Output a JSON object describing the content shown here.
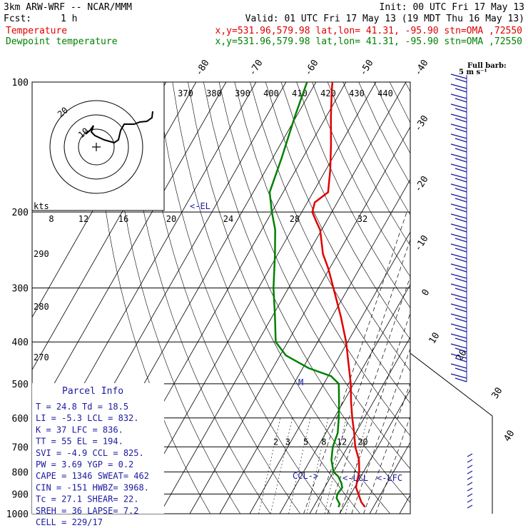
{
  "header": {
    "line1_left": "3km ARW-WRF -- NCAR/MMM",
    "line1_right": "Init: 00 UTC Fri 17 May 13",
    "fcst_label": "Fcst:",
    "fcst_value": "1 h",
    "valid": "Valid: 01 UTC Fri 17 May 13 (19 MDT Thu 16 May 13)",
    "temp_label": "Temperature",
    "temp_info": "x,y=531.96,579.98   lat,lon= 41.31, -95.90  stn=OMA ,72550",
    "dew_label": "Dewpoint temperature",
    "dew_info": "x,y=531.96,579.98   lat,lon= 41.31, -95.90  stn=OMA ,72550"
  },
  "colors": {
    "temperature": "#e00000",
    "dewpoint": "#008000",
    "parcel_box": "#1a1aa0",
    "wind_barbs": "#1a1aa0"
  },
  "labels": {
    "wind_note_1": "Full barb:",
    "wind_note_2": "5 m s⁻¹",
    "hodo_units": "kts",
    "el_marker": "<-EL",
    "ccl_marker": "CCL->",
    "lcl_marker": "<-LCL",
    "lfc_marker": "<-LFC",
    "m_marker": "M"
  },
  "parcel": {
    "title": "Parcel Info",
    "rows": [
      "T   =   24.8  Td =  18.5",
      "LI  =   -5.3  LCL =  832.",
      "K   =     37  LFC =  836.",
      "TT  =     55  EL  =  194.",
      "SVI =   -4.9  CCL =  825.",
      "PW  =   3.69  YGP =   0.2",
      "CAPE =  1346  SWEAT=  462",
      "CIN  =  -151  HWBZ= 3968.",
      "Tc  =   27.1  SHEAR=  22.",
      "SREH =    36  LAPSE=  7.2",
      "CELL = 229/17"
    ]
  },
  "chart_data": {
    "type": "line",
    "chart_kind": "skew-T log-p sounding",
    "y_axis": {
      "scale": "log",
      "range": [
        1000,
        100
      ],
      "ticks": [
        100,
        200,
        300,
        400,
        500,
        600,
        700,
        800,
        900,
        1000
      ]
    },
    "isotherm_labels": [
      -80,
      -70,
      -60,
      -50,
      -40,
      -30,
      -20,
      -10,
      0,
      10,
      20,
      30,
      40
    ],
    "theta_labels_top": [
      370,
      380,
      390,
      400,
      410,
      420,
      430,
      440
    ],
    "theta_labels_left": [
      290,
      280,
      270
    ],
    "hodograph_ring_labels": [
      8,
      12,
      16,
      20,
      24,
      28,
      32
    ],
    "mixing_ratio_labels": [
      2,
      3,
      5,
      8,
      12,
      20
    ],
    "series": [
      {
        "name": "Temperature",
        "points": [
          [
            965,
            27.2
          ],
          [
            940,
            25.0
          ],
          [
            900,
            22.5
          ],
          [
            870,
            20.5
          ],
          [
            840,
            19.6
          ],
          [
            800,
            18.6
          ],
          [
            750,
            16.2
          ],
          [
            700,
            12.5
          ],
          [
            650,
            9.5
          ],
          [
            600,
            6.0
          ],
          [
            550,
            2.5
          ],
          [
            500,
            -1.0
          ],
          [
            450,
            -5.5
          ],
          [
            400,
            -10.5
          ],
          [
            350,
            -17.0
          ],
          [
            300,
            -25.0
          ],
          [
            270,
            -30.5
          ],
          [
            250,
            -35.0
          ],
          [
            220,
            -40.5
          ],
          [
            210,
            -43.5
          ],
          [
            200,
            -46.5
          ],
          [
            190,
            -47.5
          ],
          [
            180,
            -45.0
          ],
          [
            160,
            -48.5
          ],
          [
            140,
            -53.0
          ],
          [
            120,
            -58.5
          ],
          [
            105,
            -63.0
          ],
          [
            100,
            -64.5
          ]
        ]
      },
      {
        "name": "Dewpoint temperature",
        "points": [
          [
            965,
            18.3
          ],
          [
            950,
            18.2
          ],
          [
            920,
            16.0
          ],
          [
            900,
            15.5
          ],
          [
            870,
            15.9
          ],
          [
            850,
            14.8
          ],
          [
            820,
            12.5
          ],
          [
            800,
            10.0
          ],
          [
            750,
            7.0
          ],
          [
            700,
            5.0
          ],
          [
            650,
            4.0
          ],
          [
            600,
            1.5
          ],
          [
            550,
            -1.5
          ],
          [
            500,
            -5.0
          ],
          [
            480,
            -9.0
          ],
          [
            460,
            -18.0
          ],
          [
            430,
            -28.0
          ],
          [
            400,
            -34.0
          ],
          [
            350,
            -39.0
          ],
          [
            300,
            -45.0
          ],
          [
            250,
            -51.0
          ],
          [
            220,
            -55.5
          ],
          [
            200,
            -60.0
          ],
          [
            180,
            -64.5
          ],
          [
            150,
            -67.0
          ],
          [
            120,
            -70.5
          ],
          [
            100,
            -73.0
          ]
        ]
      }
    ]
  }
}
